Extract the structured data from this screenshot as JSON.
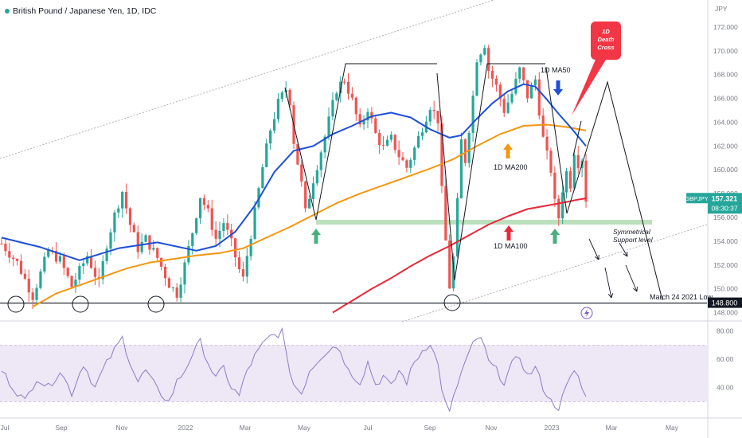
{
  "window": {
    "title": "British Pound / Japanese Yen, 1D, IDC",
    "price_axis_unit": "JPY"
  },
  "price_badge": {
    "symbol": "GBPJPY",
    "price": "157.321",
    "countdown": "08:30:37",
    "level_label": "148.800"
  },
  "annotations": {
    "death_cross": "1D\nDeath\nCross",
    "ma50": "1D MA50",
    "ma200": "1D MA200",
    "ma100": "1D MA100",
    "support": "Symmetrical\nSupport level",
    "march_low": "March 24 2021 Low"
  },
  "colors": {
    "up_candle": "#26a69a",
    "down_candle": "#ef5350",
    "ma50": "#1e4fd8",
    "ma100": "#e8293a",
    "ma200": "#f5960f",
    "rsi": "#8e7cc3",
    "rsi_band": "#ede7f6",
    "support_zone": "#a5d6a7",
    "arrow_green": "#4caf7f",
    "badge_blue": "#2962ff",
    "badge_green": "#26a69a",
    "death_cross_bg": "#f23645"
  },
  "chart_data": [
    {
      "type": "candlestick",
      "title": "British Pound / Japanese Yen, 1D, IDC",
      "x_ticks": [
        "Jul",
        "Sep",
        "Nov",
        "2022",
        "Mar",
        "May",
        "Jul",
        "Sep",
        "Nov",
        "2023",
        "Mar",
        "May"
      ],
      "y_ticks": [
        "172.000",
        "170.000",
        "168.000",
        "166.000",
        "164.000",
        "162.000",
        "160.000",
        "158.000",
        "156.000",
        "154.000",
        "152.000",
        "150.000",
        "148.000"
      ],
      "ylim": [
        147.5,
        172.8
      ],
      "last_price": 157.321,
      "horizontal_level": 148.8,
      "support_zone": [
        155.4,
        155.8
      ],
      "price_path": [
        [
          0,
          153.8
        ],
        [
          4,
          152.2
        ],
        [
          8,
          149.4
        ],
        [
          12,
          153.2
        ],
        [
          15,
          152.4
        ],
        [
          18,
          150.2
        ],
        [
          22,
          152.8
        ],
        [
          25,
          150.4
        ],
        [
          27,
          153.8
        ],
        [
          29,
          156.2
        ],
        [
          31,
          158.2
        ],
        [
          33,
          155.4
        ],
        [
          35,
          153.4
        ],
        [
          37,
          154.2
        ],
        [
          40,
          152.6
        ],
        [
          43,
          150.4
        ],
        [
          45,
          149.6
        ],
        [
          47,
          152.0
        ],
        [
          49,
          154.8
        ],
        [
          51,
          157.8
        ],
        [
          53,
          156.4
        ],
        [
          55,
          154.2
        ],
        [
          57,
          155.6
        ],
        [
          59,
          153.8
        ],
        [
          61,
          151.6
        ],
        [
          62,
          150.8
        ],
        [
          63,
          152.8
        ],
        [
          65,
          156.4
        ],
        [
          67,
          160.2
        ],
        [
          69,
          163.4
        ],
        [
          71,
          165.6
        ],
        [
          73,
          166.8
        ],
        [
          74,
          165.8
        ],
        [
          75,
          162.4
        ],
        [
          77,
          158.8
        ],
        [
          78,
          156.4
        ],
        [
          80,
          159.2
        ],
        [
          83,
          162.8
        ],
        [
          86,
          166.8
        ],
        [
          88,
          167.6
        ],
        [
          90,
          165.8
        ],
        [
          92,
          163.4
        ],
        [
          94,
          165.2
        ],
        [
          96,
          163.0
        ],
        [
          98,
          161.8
        ],
        [
          100,
          162.6
        ],
        [
          102,
          161.2
        ],
        [
          104,
          160.2
        ],
        [
          106,
          161.8
        ],
        [
          108,
          163.6
        ],
        [
          110,
          165.4
        ],
        [
          112,
          164.2
        ],
        [
          113,
          158.2
        ],
        [
          114,
          154.0
        ],
        [
          115,
          150.2
        ],
        [
          116,
          152.6
        ],
        [
          117,
          157.2
        ],
        [
          118,
          162.4
        ],
        [
          119,
          160.8
        ],
        [
          121,
          166.2
        ],
        [
          122,
          169.4
        ],
        [
          124,
          170.6
        ],
        [
          125,
          168.4
        ],
        [
          127,
          167.0
        ],
        [
          129,
          165.0
        ],
        [
          131,
          166.4
        ],
        [
          133,
          168.4
        ],
        [
          135,
          166.2
        ],
        [
          137,
          167.6
        ],
        [
          138,
          165.0
        ],
        [
          139,
          162.6
        ],
        [
          140,
          161.2
        ],
        [
          141,
          160.0
        ],
        [
          142,
          157.2
        ],
        [
          143,
          156.0
        ],
        [
          144,
          158.4
        ],
        [
          145,
          159.8
        ],
        [
          146,
          158.8
        ],
        [
          147,
          161.6
        ],
        [
          148,
          160.6
        ],
        [
          149,
          161.0
        ],
        [
          150,
          157.321
        ]
      ],
      "ma50": [
        [
          0,
          154.3
        ],
        [
          10,
          153.5
        ],
        [
          20,
          152.4
        ],
        [
          30,
          153.4
        ],
        [
          40,
          153.9
        ],
        [
          50,
          153.2
        ],
        [
          55,
          153.6
        ],
        [
          60,
          154.8
        ],
        [
          65,
          157.0
        ],
        [
          70,
          159.8
        ],
        [
          75,
          161.6
        ],
        [
          80,
          162.0
        ],
        [
          85,
          163.0
        ],
        [
          90,
          163.7
        ],
        [
          95,
          164.5
        ],
        [
          100,
          164.8
        ],
        [
          105,
          164.4
        ],
        [
          110,
          163.4
        ],
        [
          115,
          162.7
        ],
        [
          118,
          162.9
        ],
        [
          122,
          164.3
        ],
        [
          126,
          165.6
        ],
        [
          130,
          166.6
        ],
        [
          134,
          167.2
        ],
        [
          137,
          167.0
        ],
        [
          140,
          165.9
        ],
        [
          143,
          164.7
        ],
        [
          146,
          163.6
        ],
        [
          149,
          162.4
        ],
        [
          150,
          162.0
        ]
      ],
      "ma100": [
        [
          85,
          148.0
        ],
        [
          90,
          149.0
        ],
        [
          95,
          150.0
        ],
        [
          100,
          150.9
        ],
        [
          105,
          151.9
        ],
        [
          110,
          152.8
        ],
        [
          115,
          153.6
        ],
        [
          120,
          154.5
        ],
        [
          125,
          155.4
        ],
        [
          130,
          156.1
        ],
        [
          135,
          156.7
        ],
        [
          140,
          157.0
        ],
        [
          145,
          157.3
        ],
        [
          148,
          157.5
        ],
        [
          150,
          157.6
        ]
      ],
      "ma200": [
        [
          8,
          148.5
        ],
        [
          14,
          149.6
        ],
        [
          20,
          150.3
        ],
        [
          26,
          151.0
        ],
        [
          32,
          151.7
        ],
        [
          38,
          152.2
        ],
        [
          44,
          152.5
        ],
        [
          50,
          152.8
        ],
        [
          56,
          153.0
        ],
        [
          62,
          153.4
        ],
        [
          68,
          154.3
        ],
        [
          74,
          155.2
        ],
        [
          80,
          156.2
        ],
        [
          86,
          157.2
        ],
        [
          92,
          158.0
        ],
        [
          98,
          158.7
        ],
        [
          104,
          159.4
        ],
        [
          110,
          160.1
        ],
        [
          116,
          160.9
        ],
        [
          122,
          162.0
        ],
        [
          128,
          163.0
        ],
        [
          134,
          163.7
        ],
        [
          140,
          163.8
        ],
        [
          145,
          163.6
        ],
        [
          150,
          163.3
        ]
      ],
      "rsi": {
        "y_ticks": [
          "80.00",
          "60.00",
          "40.00"
        ],
        "band": [
          30,
          70
        ],
        "path": [
          [
            0,
            52
          ],
          [
            3,
            40
          ],
          [
            6,
            30
          ],
          [
            9,
            47
          ],
          [
            12,
            40
          ],
          [
            15,
            52
          ],
          [
            18,
            36
          ],
          [
            21,
            57
          ],
          [
            24,
            40
          ],
          [
            26,
            52
          ],
          [
            28,
            62
          ],
          [
            31,
            75
          ],
          [
            33,
            58
          ],
          [
            35,
            44
          ],
          [
            37,
            52
          ],
          [
            40,
            38
          ],
          [
            43,
            30
          ],
          [
            45,
            44
          ],
          [
            47,
            52
          ],
          [
            49,
            64
          ],
          [
            51,
            72
          ],
          [
            53,
            58
          ],
          [
            55,
            46
          ],
          [
            57,
            54
          ],
          [
            59,
            40
          ],
          [
            61,
            34
          ],
          [
            63,
            52
          ],
          [
            65,
            62
          ],
          [
            67,
            70
          ],
          [
            69,
            76
          ],
          [
            71,
            78
          ],
          [
            72,
            80
          ],
          [
            73,
            63
          ],
          [
            75,
            42
          ],
          [
            77,
            36
          ],
          [
            79,
            52
          ],
          [
            82,
            62
          ],
          [
            85,
            70
          ],
          [
            87,
            66
          ],
          [
            89,
            52
          ],
          [
            92,
            44
          ],
          [
            94,
            58
          ],
          [
            96,
            42
          ],
          [
            98,
            48
          ],
          [
            100,
            40
          ],
          [
            102,
            52
          ],
          [
            104,
            44
          ],
          [
            106,
            58
          ],
          [
            108,
            66
          ],
          [
            110,
            72
          ],
          [
            112,
            56
          ],
          [
            113,
            40
          ],
          [
            114,
            28
          ],
          [
            115,
            22
          ],
          [
            117,
            42
          ],
          [
            119,
            58
          ],
          [
            121,
            70
          ],
          [
            123,
            76
          ],
          [
            125,
            58
          ],
          [
            127,
            52
          ],
          [
            129,
            44
          ],
          [
            131,
            56
          ],
          [
            133,
            62
          ],
          [
            135,
            48
          ],
          [
            137,
            54
          ],
          [
            139,
            40
          ],
          [
            141,
            30
          ],
          [
            143,
            26
          ],
          [
            145,
            40
          ],
          [
            147,
            52
          ],
          [
            148,
            48
          ],
          [
            149,
            38
          ],
          [
            150,
            36
          ]
        ]
      }
    }
  ]
}
